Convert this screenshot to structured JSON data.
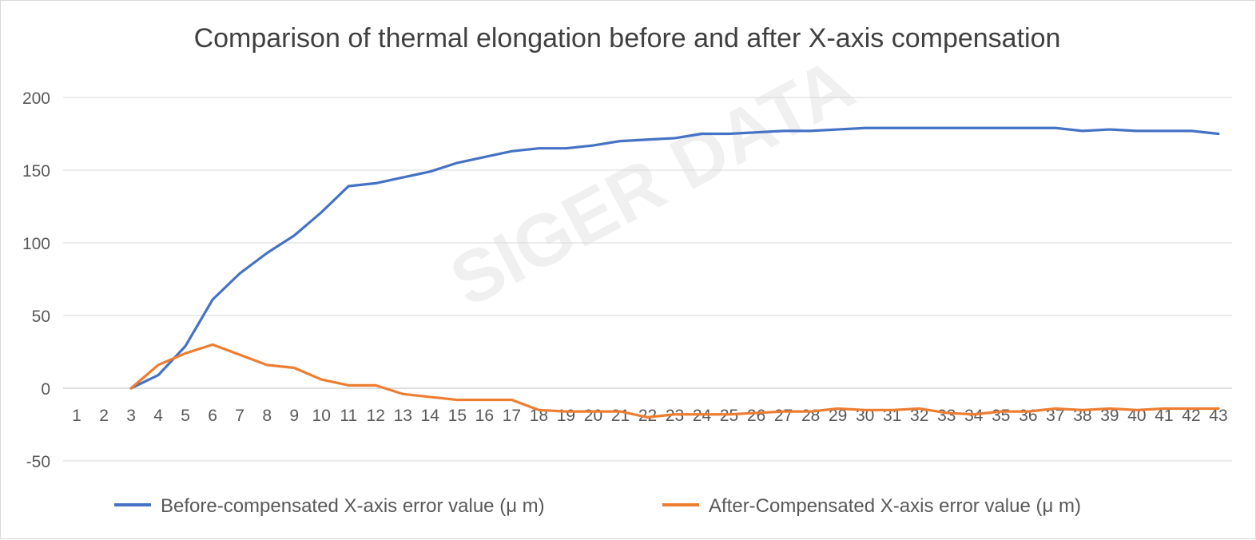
{
  "watermark": "SIGER DATA",
  "chart_data": {
    "type": "line",
    "title": "Comparison of thermal elongation before and after X-axis compensation",
    "xlabel": "",
    "ylabel": "",
    "ylim": [
      -50,
      200
    ],
    "yticks": [
      -50,
      0,
      50,
      100,
      150,
      200
    ],
    "grid": true,
    "legend_position": "bottom",
    "x": [
      1,
      2,
      3,
      4,
      5,
      6,
      7,
      8,
      9,
      10,
      11,
      12,
      13,
      14,
      15,
      16,
      17,
      18,
      19,
      20,
      21,
      22,
      23,
      24,
      25,
      26,
      27,
      28,
      29,
      30,
      31,
      32,
      33,
      34,
      35,
      36,
      37,
      38,
      39,
      40,
      41,
      42,
      43
    ],
    "series": [
      {
        "name": "Before-compensated X-axis error value (μ m)",
        "color": "#4472c4",
        "values": [
          null,
          null,
          0,
          9,
          29,
          61,
          79,
          93,
          105,
          121,
          139,
          141,
          145,
          149,
          155,
          159,
          163,
          165,
          165,
          167,
          170,
          171,
          172,
          175,
          175,
          176,
          177,
          177,
          178,
          179,
          179,
          179,
          179,
          179,
          179,
          179,
          179,
          177,
          178,
          177,
          177,
          177,
          175
        ]
      },
      {
        "name": "After-Compensated X-axis error value (μ m)",
        "color": "#ed7d31",
        "values": [
          null,
          null,
          0,
          16,
          24,
          30,
          23,
          16,
          14,
          6,
          2,
          2,
          -4,
          -6,
          -8,
          -8,
          -8,
          -15,
          -16,
          -16,
          -16,
          -20,
          -18,
          -18,
          -18,
          -17,
          -16,
          -16,
          -14,
          -15,
          -15,
          -14,
          -17,
          -18,
          -16,
          -16,
          -14,
          -15,
          -14,
          -15,
          -14,
          -14,
          -14
        ]
      }
    ]
  }
}
